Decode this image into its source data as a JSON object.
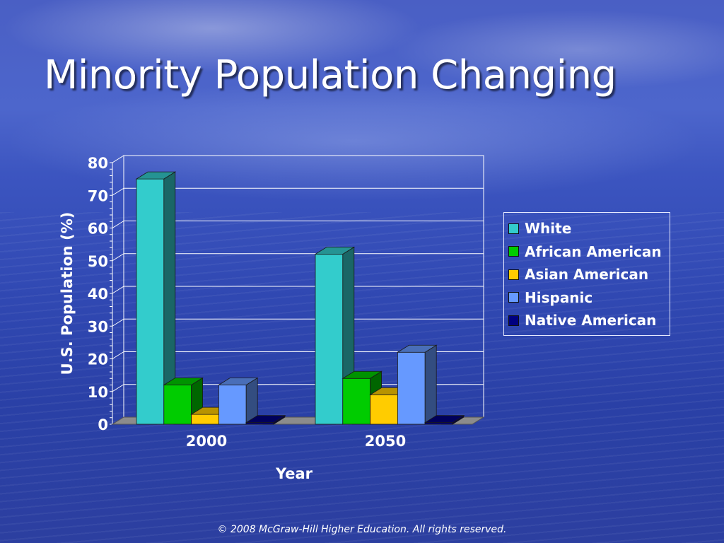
{
  "slide": {
    "title": "Minority Population Changing",
    "footer": "© 2008 McGraw-Hill Higher Education. All rights reserved."
  },
  "chart_data": {
    "type": "bar",
    "categories": [
      "2000",
      "2050"
    ],
    "series": [
      {
        "name": "White",
        "values": [
          75,
          52
        ],
        "color": "#33cccc"
      },
      {
        "name": "African American",
        "values": [
          12,
          14
        ],
        "color": "#00cc00"
      },
      {
        "name": "Asian American",
        "values": [
          3,
          9
        ],
        "color": "#ffcc00"
      },
      {
        "name": "Hispanic",
        "values": [
          12,
          22
        ],
        "color": "#6699ff"
      },
      {
        "name": "Native American",
        "values": [
          0.5,
          0.5
        ],
        "color": "#000080"
      }
    ],
    "xlabel": "Year",
    "ylabel": "U.S. Population (%)",
    "ylim": [
      0,
      80
    ],
    "yticks": [
      "0",
      "10",
      "20",
      "30",
      "40",
      "50",
      "60",
      "70",
      "80"
    ],
    "grid": true,
    "legend_position": "right",
    "three_d": true
  }
}
